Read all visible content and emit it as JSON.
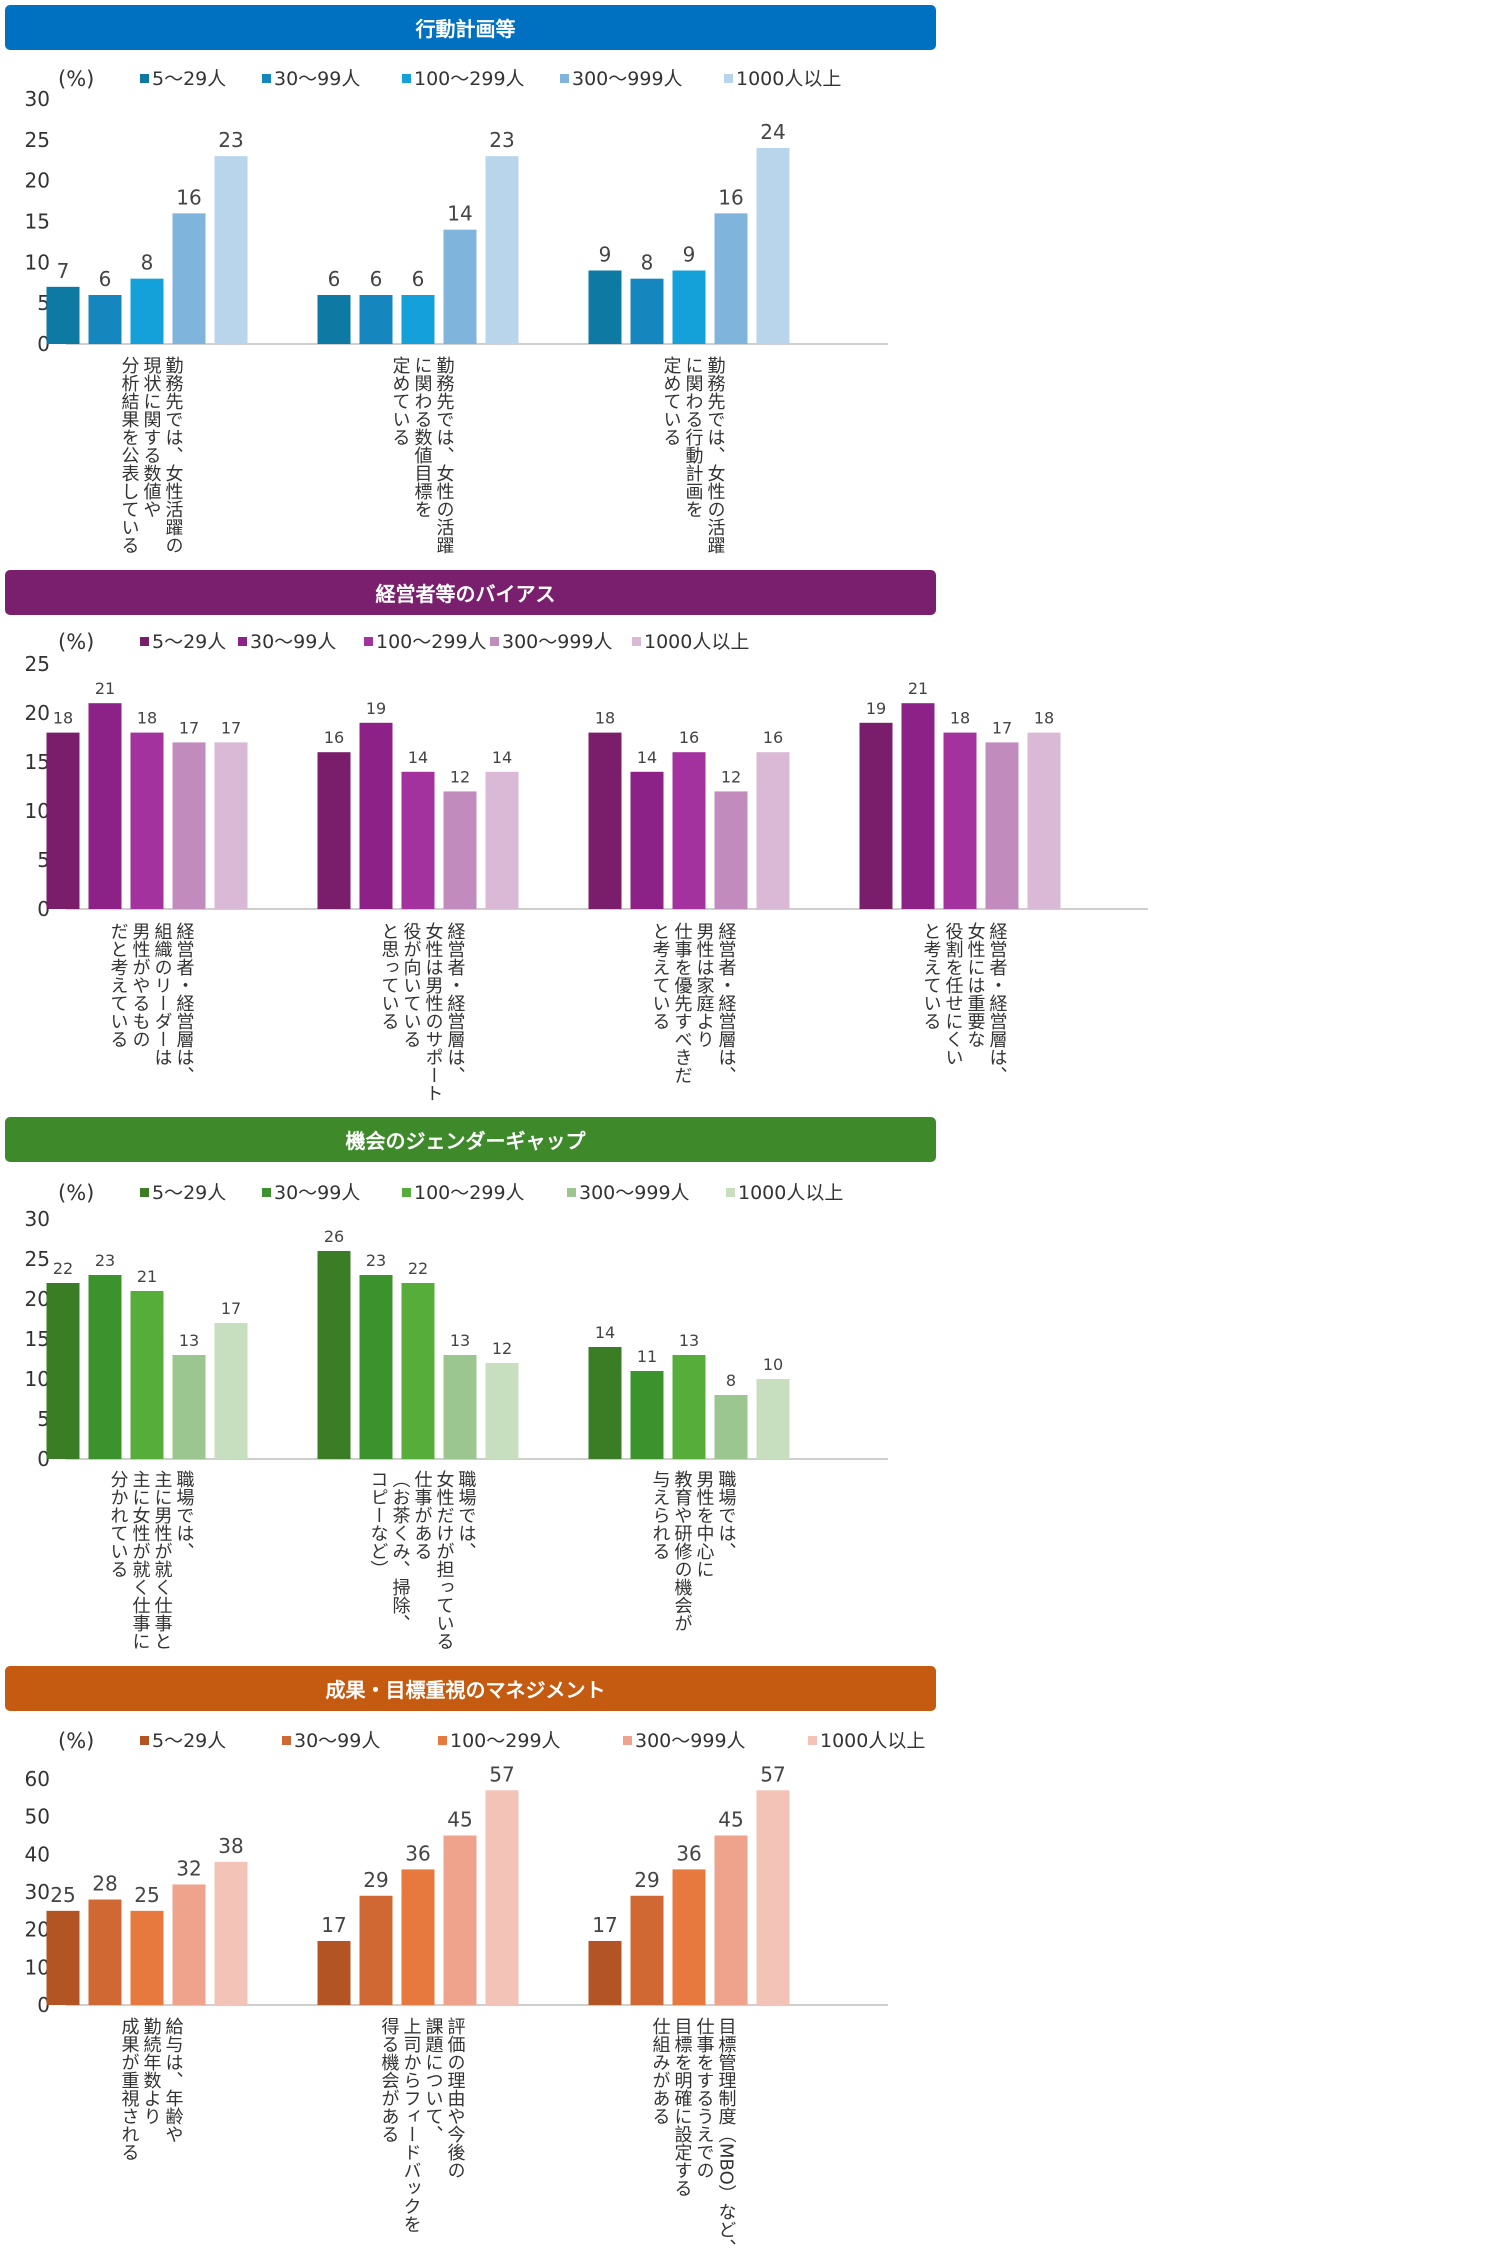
{
  "unit_label": "(%)",
  "legend_labels": [
    "5～29人",
    "30～99人",
    "100～299人",
    "300～999人",
    "1000人以上"
  ],
  "chart_data": [
    {
      "type": "bar",
      "title": "行動計画等",
      "header_color": "#0070C0",
      "series_colors": [
        "#0E79A3",
        "#1587BE",
        "#14A0D8",
        "#7FB5DD",
        "#B9D5EC"
      ],
      "ylim": [
        0,
        30
      ],
      "yticks": [
        0,
        5,
        10,
        15,
        20,
        25,
        30
      ],
      "series": [
        {
          "name": "5～29人",
          "values": [
            7,
            6,
            9
          ]
        },
        {
          "name": "30～99人",
          "values": [
            6,
            6,
            8
          ]
        },
        {
          "name": "100～299人",
          "values": [
            8,
            6,
            9
          ]
        },
        {
          "name": "300～999人",
          "values": [
            16,
            14,
            16
          ]
        },
        {
          "name": "1000人以上",
          "values": [
            23,
            23,
            24
          ]
        }
      ],
      "categories": [
        [
          "勤務先では、女性活躍の",
          "現状に関する数値や",
          "分析結果を公表している"
        ],
        [
          "勤務先では、女性の活躍",
          "に関わる数値目標を",
          "定めている"
        ],
        [
          "勤務先では、女性の活躍",
          "に関わる行動計画を",
          "定めている"
        ]
      ]
    },
    {
      "type": "bar",
      "title": "経営者等のバイアス",
      "header_color": "#7A1F6E",
      "series_colors": [
        "#7A1E6C",
        "#8C2287",
        "#A3329F",
        "#C18BBE",
        "#D9B9D6"
      ],
      "ylim": [
        0,
        25
      ],
      "yticks": [
        0,
        5,
        10,
        15,
        20,
        25
      ],
      "series": [
        {
          "name": "5～29人",
          "values": [
            18,
            16,
            18,
            19
          ]
        },
        {
          "name": "30～99人",
          "values": [
            21,
            19,
            14,
            21
          ]
        },
        {
          "name": "100～299人",
          "values": [
            18,
            14,
            16,
            18
          ]
        },
        {
          "name": "300～999人",
          "values": [
            17,
            12,
            12,
            17
          ]
        },
        {
          "name": "1000人以上",
          "values": [
            17,
            14,
            16,
            18
          ]
        }
      ],
      "categories": [
        [
          "経営者・経営層は、",
          "組織のリーダーは",
          "男性がやるもの",
          "だと考えている"
        ],
        [
          "経営者・経営層は、",
          "女性は男性のサポート",
          "役が向いている",
          "と思っている"
        ],
        [
          "経営者・経営層は、",
          "男性は家庭より",
          "仕事を優先すべきだ",
          "と考えている"
        ],
        [
          "経営者・経営層は、",
          "女性には重要な",
          "役割を任せにくい",
          "と考えている"
        ]
      ]
    },
    {
      "type": "bar",
      "title": "機会のジェンダーギャップ",
      "header_color": "#3E8A2B",
      "series_colors": [
        "#3A7D24",
        "#3C922D",
        "#57AD3A",
        "#9CC690",
        "#C7DFBE"
      ],
      "ylim": [
        0,
        30
      ],
      "yticks": [
        0,
        5,
        10,
        15,
        20,
        25,
        30
      ],
      "series": [
        {
          "name": "5～29人",
          "values": [
            22,
            26,
            14
          ]
        },
        {
          "name": "30～99人",
          "values": [
            23,
            23,
            11
          ]
        },
        {
          "name": "100～299人",
          "values": [
            21,
            22,
            13
          ]
        },
        {
          "name": "300～999人",
          "values": [
            13,
            13,
            8
          ]
        },
        {
          "name": "1000人以上",
          "values": [
            17,
            12,
            10
          ]
        }
      ],
      "categories": [
        [
          "職場では、",
          "主に男性が就く仕事と",
          "主に女性が就く仕事に",
          "分かれている"
        ],
        [
          "職場では、",
          "女性だけが担っている",
          "仕事がある",
          "（お茶くみ、掃除、",
          "コピーなど）"
        ],
        [
          "職場では、",
          "男性を中心に",
          "教育や研修の機会が",
          "与えられる"
        ]
      ]
    },
    {
      "type": "bar",
      "title": "成果・目標重視のマネジメント",
      "header_color": "#C55A11",
      "series_colors": [
        "#B35424",
        "#CF6832",
        "#E8793E",
        "#EFA38C",
        "#F2C3B6"
      ],
      "ylim": [
        0,
        60
      ],
      "yticks": [
        0,
        10,
        20,
        30,
        40,
        50,
        60
      ],
      "series": [
        {
          "name": "5～29人",
          "values": [
            25,
            17,
            17
          ]
        },
        {
          "name": "30～99人",
          "values": [
            28,
            29,
            29
          ]
        },
        {
          "name": "100～299人",
          "values": [
            25,
            36,
            36
          ]
        },
        {
          "name": "300～999人",
          "values": [
            32,
            45,
            45
          ]
        },
        {
          "name": "1000人以上",
          "values": [
            38,
            57,
            57
          ]
        }
      ],
      "categories": [
        [
          "給与は、年齢や",
          "勤続年数より",
          "成果が重視される"
        ],
        [
          "評価の理由や今後の",
          "課題について、",
          "上司からフィードバックを",
          "得る機会がある"
        ],
        [
          "目標管理制度（MBO）など、",
          "仕事をするうえでの",
          "目標を明確に設定する",
          "仕組みがある"
        ]
      ]
    }
  ]
}
